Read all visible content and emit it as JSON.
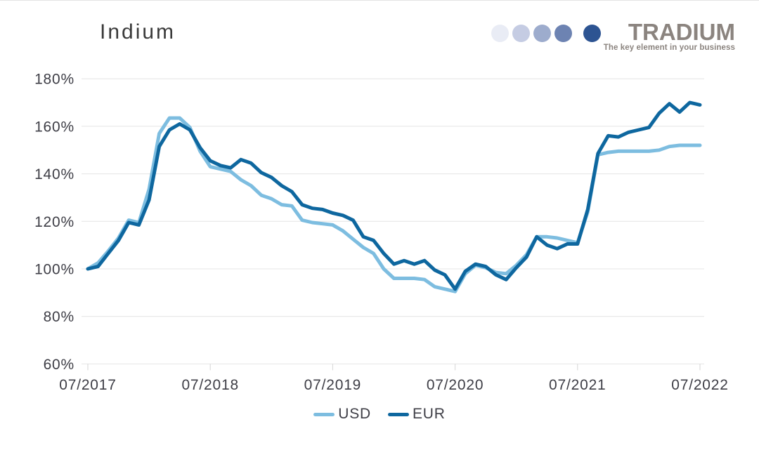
{
  "header": {
    "title": "Indium"
  },
  "logo": {
    "name": "TRADIUM",
    "tagline": "The key element in your business",
    "text_color": "#8b847f",
    "dot_colors": [
      "#e9ecf5",
      "#c5cce3",
      "#9daccd",
      "#6d83b2",
      "#2d5492"
    ]
  },
  "chart_data": {
    "type": "line",
    "title": "Indium",
    "x_unit": "month",
    "x_range": [
      "07/2017",
      "07/2022"
    ],
    "x_months": 60,
    "x_tick_positions": [
      0,
      12,
      24,
      36,
      48,
      60
    ],
    "x_tick_labels": [
      "07/2017",
      "07/2018",
      "07/2019",
      "07/2020",
      "07/2021",
      "07/2022"
    ],
    "y_ticks": [
      60,
      80,
      100,
      120,
      140,
      160,
      180
    ],
    "y_tick_suffix": "%",
    "ylim": [
      60,
      180
    ],
    "grid": true,
    "legend_position": "bottom",
    "grid_color": "#e4e4e4",
    "axis_text_color": "#3e3e46",
    "series": [
      {
        "name": "USD",
        "color": "#7dbde0",
        "values": [
          100,
          102.5,
          107.5,
          113,
          120.5,
          119.5,
          133.5,
          157,
          163.5,
          163.5,
          159.5,
          149.5,
          143,
          142,
          141,
          137.5,
          135,
          131,
          129.5,
          127,
          126.5,
          120.5,
          119.5,
          119,
          118.5,
          116,
          112.5,
          109,
          106.5,
          100,
          96,
          96,
          96,
          95.5,
          92.5,
          91.5,
          90.5,
          98,
          101.5,
          100.5,
          98.5,
          98,
          101.5,
          106,
          113.5,
          113.5,
          113,
          112,
          111,
          124,
          148,
          149,
          149.5,
          149.5,
          149.5,
          149.5,
          150,
          151.5,
          152,
          152,
          152
        ]
      },
      {
        "name": "EUR",
        "color": "#0e679f",
        "values": [
          100,
          101,
          106.5,
          112,
          119.5,
          118.5,
          129,
          151.5,
          158.5,
          161,
          158.5,
          151,
          145.5,
          143.5,
          142.5,
          146,
          144.5,
          140.5,
          138.5,
          135,
          132.5,
          127,
          125.5,
          125,
          123.5,
          122.5,
          120.5,
          113.5,
          112,
          106.5,
          102,
          103.5,
          102,
          103.5,
          99.5,
          97.5,
          91.5,
          99,
          102,
          101,
          97.5,
          95.5,
          100.5,
          105,
          113.5,
          110,
          108.5,
          110.5,
          110.5,
          125,
          148.5,
          156,
          155.5,
          157.5,
          158.5,
          159.5,
          165.5,
          169.5,
          166,
          170,
          169
        ]
      }
    ]
  }
}
